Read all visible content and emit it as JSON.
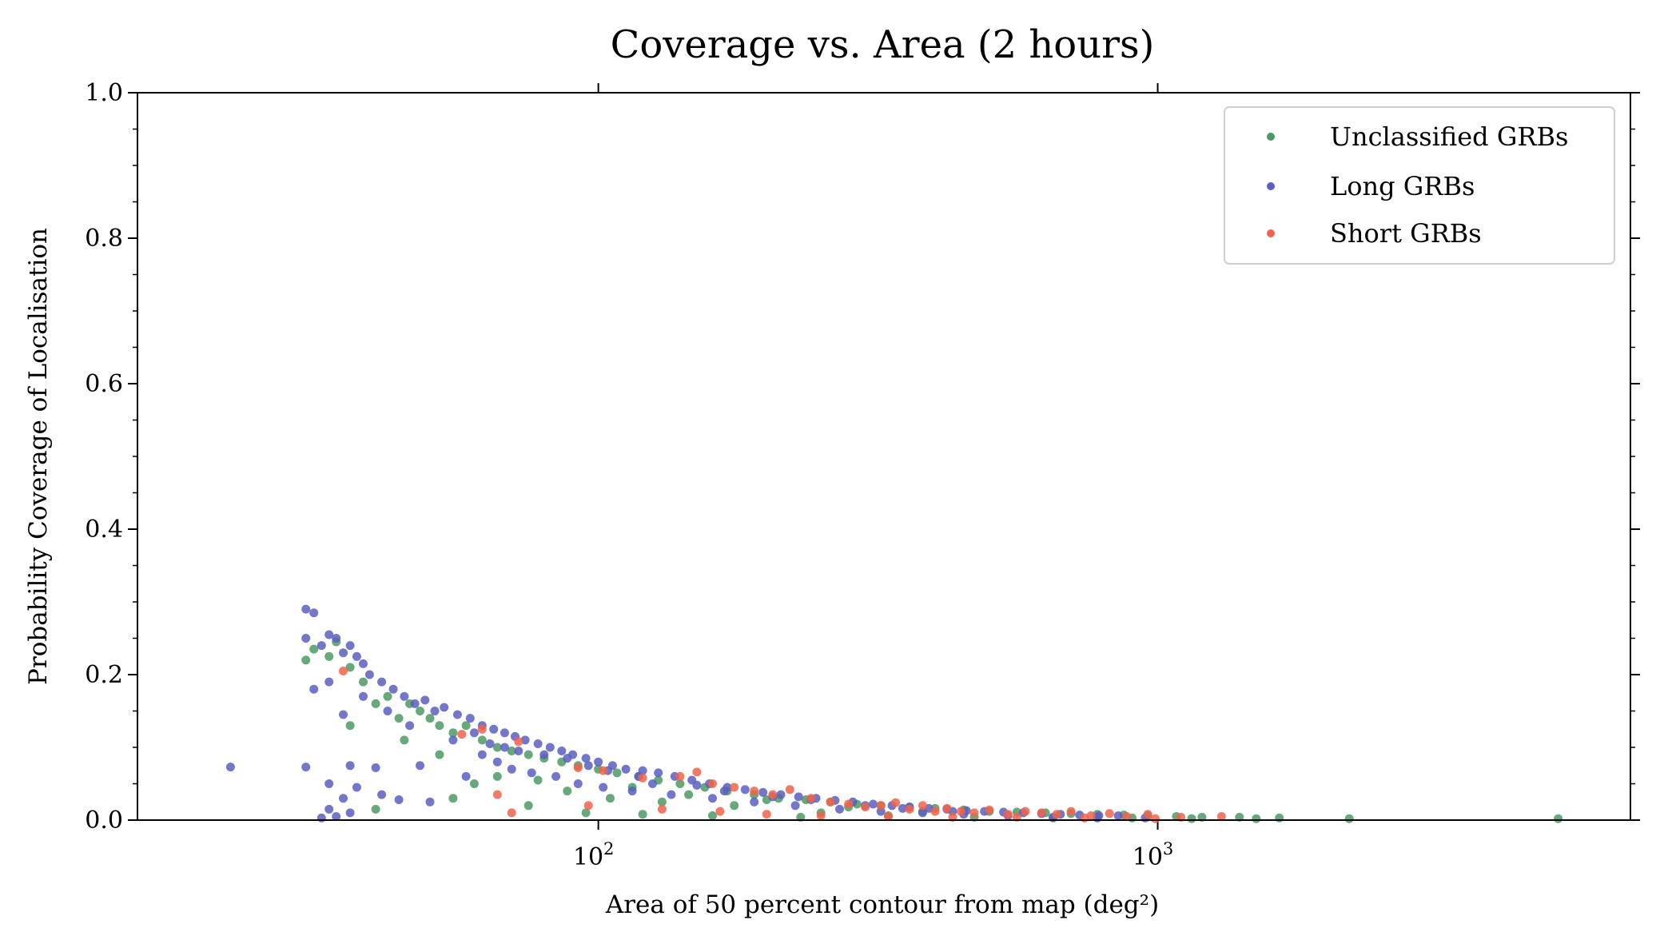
{
  "chart_data": {
    "type": "scatter",
    "title": "Coverage vs. Area (2 hours)",
    "xlabel": "Area of 50 percent contour from map (deg²)",
    "ylabel": "Probability Coverage of Localisation",
    "xscale": "log",
    "xlim": [
      15,
      7000
    ],
    "ylim": [
      0,
      1
    ],
    "x_ticks": [
      {
        "value": 100,
        "base": "10",
        "exp": "2"
      },
      {
        "value": 1000,
        "base": "10",
        "exp": "3"
      }
    ],
    "y_ticks": [
      {
        "value": 0.0,
        "label": "0.0"
      },
      {
        "value": 0.2,
        "label": "0.2"
      },
      {
        "value": 0.4,
        "label": "0.4"
      },
      {
        "value": 0.6,
        "label": "0.6"
      },
      {
        "value": 0.8,
        "label": "0.8"
      },
      {
        "value": 1.0,
        "label": "1.0"
      }
    ],
    "grid": false,
    "legend_position": "top-right",
    "series": [
      {
        "name": "Unclassified GRBs",
        "color": "#4c9a63",
        "points": [
          [
            30,
            0.22
          ],
          [
            31,
            0.235
          ],
          [
            33,
            0.225
          ],
          [
            34,
            0.245
          ],
          [
            36,
            0.21
          ],
          [
            38,
            0.19
          ],
          [
            40,
            0.16
          ],
          [
            42,
            0.17
          ],
          [
            44,
            0.14
          ],
          [
            46,
            0.16
          ],
          [
            48,
            0.15
          ],
          [
            50,
            0.14
          ],
          [
            52,
            0.13
          ],
          [
            55,
            0.12
          ],
          [
            58,
            0.13
          ],
          [
            62,
            0.11
          ],
          [
            66,
            0.1
          ],
          [
            70,
            0.095
          ],
          [
            75,
            0.09
          ],
          [
            80,
            0.085
          ],
          [
            86,
            0.08
          ],
          [
            92,
            0.075
          ],
          [
            100,
            0.07
          ],
          [
            108,
            0.065
          ],
          [
            118,
            0.06
          ],
          [
            128,
            0.055
          ],
          [
            140,
            0.05
          ],
          [
            155,
            0.045
          ],
          [
            170,
            0.04
          ],
          [
            190,
            0.035
          ],
          [
            210,
            0.03
          ],
          [
            235,
            0.028
          ],
          [
            260,
            0.025
          ],
          [
            290,
            0.022
          ],
          [
            320,
            0.02
          ],
          [
            360,
            0.018
          ],
          [
            400,
            0.016
          ],
          [
            450,
            0.014
          ],
          [
            500,
            0.012
          ],
          [
            560,
            0.011
          ],
          [
            630,
            0.01
          ],
          [
            700,
            0.009
          ],
          [
            780,
            0.008
          ],
          [
            870,
            0.007
          ],
          [
            960,
            0.006
          ],
          [
            1080,
            0.005
          ],
          [
            1200,
            0.004
          ],
          [
            1400,
            0.004
          ],
          [
            1650,
            0.003
          ],
          [
            2200,
            0.002
          ],
          [
            5200,
            0.002
          ],
          [
            36,
            0.13
          ],
          [
            45,
            0.11
          ],
          [
            52,
            0.09
          ],
          [
            60,
            0.05
          ],
          [
            75,
            0.02
          ],
          [
            95,
            0.01
          ],
          [
            120,
            0.008
          ],
          [
            160,
            0.006
          ],
          [
            230,
            0.004
          ],
          [
            40,
            0.015
          ],
          [
            55,
            0.03
          ],
          [
            88,
            0.04
          ],
          [
            105,
            0.03
          ],
          [
            130,
            0.025
          ],
          [
            175,
            0.02
          ],
          [
            250,
            0.01
          ],
          [
            330,
            0.006
          ],
          [
            470,
            0.004
          ],
          [
            650,
            0.003
          ],
          [
            900,
            0.003
          ],
          [
            1150,
            0.002
          ],
          [
            1500,
            0.002
          ],
          [
            66,
            0.06
          ],
          [
            78,
            0.055
          ],
          [
            115,
            0.045
          ],
          [
            145,
            0.035
          ],
          [
            200,
            0.028
          ],
          [
            280,
            0.018
          ],
          [
            380,
            0.012
          ]
        ]
      },
      {
        "name": "Long GRBs",
        "color": "#5b5fbf",
        "points": [
          [
            30,
            0.29
          ],
          [
            31,
            0.285
          ],
          [
            30,
            0.25
          ],
          [
            32,
            0.24
          ],
          [
            33,
            0.255
          ],
          [
            34,
            0.25
          ],
          [
            35,
            0.23
          ],
          [
            36,
            0.24
          ],
          [
            37,
            0.225
          ],
          [
            38,
            0.215
          ],
          [
            39,
            0.2
          ],
          [
            41,
            0.19
          ],
          [
            43,
            0.18
          ],
          [
            45,
            0.17
          ],
          [
            47,
            0.16
          ],
          [
            49,
            0.165
          ],
          [
            51,
            0.15
          ],
          [
            53,
            0.155
          ],
          [
            56,
            0.145
          ],
          [
            59,
            0.14
          ],
          [
            62,
            0.13
          ],
          [
            65,
            0.125
          ],
          [
            68,
            0.12
          ],
          [
            71,
            0.115
          ],
          [
            74,
            0.11
          ],
          [
            78,
            0.105
          ],
          [
            82,
            0.1
          ],
          [
            86,
            0.095
          ],
          [
            90,
            0.09
          ],
          [
            95,
            0.085
          ],
          [
            100,
            0.08
          ],
          [
            106,
            0.075
          ],
          [
            112,
            0.07
          ],
          [
            120,
            0.068
          ],
          [
            128,
            0.065
          ],
          [
            137,
            0.06
          ],
          [
            147,
            0.055
          ],
          [
            158,
            0.05
          ],
          [
            170,
            0.045
          ],
          [
            183,
            0.042
          ],
          [
            197,
            0.038
          ],
          [
            212,
            0.035
          ],
          [
            228,
            0.032
          ],
          [
            245,
            0.03
          ],
          [
            265,
            0.027
          ],
          [
            285,
            0.025
          ],
          [
            310,
            0.022
          ],
          [
            335,
            0.02
          ],
          [
            360,
            0.018
          ],
          [
            390,
            0.016
          ],
          [
            420,
            0.015
          ],
          [
            455,
            0.013
          ],
          [
            490,
            0.012
          ],
          [
            530,
            0.011
          ],
          [
            575,
            0.01
          ],
          [
            620,
            0.009
          ],
          [
            670,
            0.008
          ],
          [
            725,
            0.007
          ],
          [
            785,
            0.006
          ],
          [
            850,
            0.006
          ],
          [
            22,
            0.073
          ],
          [
            30,
            0.073
          ],
          [
            36,
            0.075
          ],
          [
            40,
            0.072
          ],
          [
            48,
            0.075
          ],
          [
            31,
            0.18
          ],
          [
            33,
            0.19
          ],
          [
            35,
            0.145
          ],
          [
            38,
            0.17
          ],
          [
            42,
            0.15
          ],
          [
            46,
            0.13
          ],
          [
            33,
            0.05
          ],
          [
            35,
            0.03
          ],
          [
            37,
            0.045
          ],
          [
            41,
            0.035
          ],
          [
            44,
            0.028
          ],
          [
            50,
            0.025
          ],
          [
            33,
            0.015
          ],
          [
            34,
            0.005
          ],
          [
            36,
            0.01
          ],
          [
            32,
            0.003
          ],
          [
            58,
            0.06
          ],
          [
            62,
            0.09
          ],
          [
            66,
            0.08
          ],
          [
            70,
            0.07
          ],
          [
            76,
            0.065
          ],
          [
            84,
            0.06
          ],
          [
            92,
            0.05
          ],
          [
            102,
            0.045
          ],
          [
            115,
            0.04
          ],
          [
            135,
            0.035
          ],
          [
            160,
            0.03
          ],
          [
            190,
            0.025
          ],
          [
            225,
            0.02
          ],
          [
            270,
            0.015
          ],
          [
            320,
            0.012
          ],
          [
            380,
            0.01
          ],
          [
            450,
            0.008
          ],
          [
            540,
            0.006
          ],
          [
            650,
            0.004
          ],
          [
            780,
            0.003
          ],
          [
            950,
            0.003
          ],
          [
            55,
            0.11
          ],
          [
            60,
            0.12
          ],
          [
            64,
            0.105
          ],
          [
            68,
            0.1
          ],
          [
            72,
            0.095
          ],
          [
            80,
            0.09
          ],
          [
            88,
            0.085
          ],
          [
            96,
            0.075
          ],
          [
            104,
            0.068
          ],
          [
            118,
            0.06
          ],
          [
            125,
            0.05
          ],
          [
            150,
            0.048
          ],
          [
            168,
            0.04
          ],
          [
            205,
            0.032
          ],
          [
            240,
            0.028
          ],
          [
            300,
            0.02
          ],
          [
            350,
            0.016
          ],
          [
            430,
            0.012
          ]
        ]
      },
      {
        "name": "Short GRBs",
        "color": "#f2634a",
        "points": [
          [
            35,
            0.205
          ],
          [
            57,
            0.118
          ],
          [
            62,
            0.125
          ],
          [
            72,
            0.108
          ],
          [
            92,
            0.072
          ],
          [
            102,
            0.068
          ],
          [
            120,
            0.058
          ],
          [
            140,
            0.06
          ],
          [
            150,
            0.066
          ],
          [
            160,
            0.05
          ],
          [
            175,
            0.045
          ],
          [
            190,
            0.04
          ],
          [
            205,
            0.035
          ],
          [
            220,
            0.042
          ],
          [
            240,
            0.03
          ],
          [
            260,
            0.025
          ],
          [
            280,
            0.022
          ],
          [
            300,
            0.018
          ],
          [
            320,
            0.02
          ],
          [
            340,
            0.024
          ],
          [
            360,
            0.015
          ],
          [
            380,
            0.02
          ],
          [
            400,
            0.012
          ],
          [
            420,
            0.016
          ],
          [
            445,
            0.012
          ],
          [
            470,
            0.01
          ],
          [
            500,
            0.014
          ],
          [
            540,
            0.008
          ],
          [
            580,
            0.012
          ],
          [
            620,
            0.01
          ],
          [
            660,
            0.008
          ],
          [
            700,
            0.012
          ],
          [
            760,
            0.006
          ],
          [
            820,
            0.009
          ],
          [
            880,
            0.005
          ],
          [
            960,
            0.008
          ],
          [
            1100,
            0.004
          ],
          [
            1300,
            0.005
          ],
          [
            66,
            0.035
          ],
          [
            70,
            0.01
          ],
          [
            96,
            0.02
          ],
          [
            130,
            0.015
          ],
          [
            165,
            0.012
          ],
          [
            200,
            0.008
          ],
          [
            250,
            0.006
          ],
          [
            330,
            0.005
          ],
          [
            430,
            0.004
          ],
          [
            560,
            0.004
          ],
          [
            740,
            0.003
          ],
          [
            990,
            0.002
          ]
        ]
      }
    ]
  }
}
